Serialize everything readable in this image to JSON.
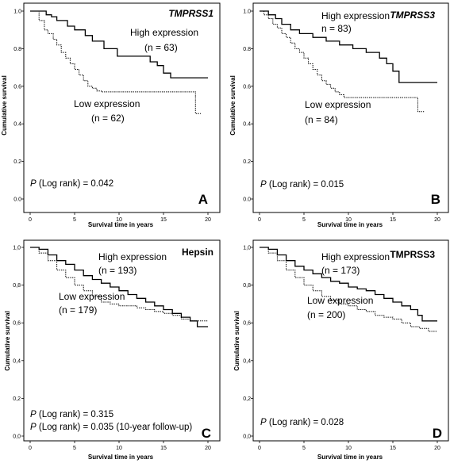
{
  "figure": {
    "panels": [
      {
        "letter": "A",
        "gene": "TMPRSS1",
        "gene_italic": true,
        "ylabel": "Cumulative survival",
        "xlabel": "Survival time in years",
        "yticks": [
          "0.0",
          "0.2",
          "0.4",
          "0.6",
          "0.8",
          "1.0"
        ],
        "xticks": [
          "0",
          "5",
          "10",
          "15",
          "20"
        ],
        "high_label": "High expression",
        "high_n": "(n = 63)",
        "low_label": "Low expression",
        "low_n": "(n = 62)",
        "pvalue_lines": [
          {
            "p": "P",
            "rest": " (Log rank) = 0.042"
          }
        ]
      },
      {
        "letter": "B",
        "gene": "TMPRSS3",
        "gene_italic": true,
        "ylabel": "Cumulative survival",
        "xlabel": "Survival time in years",
        "yticks": [
          "0.0",
          "0.2",
          "0.4",
          "0.6",
          "0.8",
          "1.0"
        ],
        "xticks": [
          "0",
          "5",
          "10",
          "15",
          "20"
        ],
        "high_label": "High expression",
        "high_n": "n = 83)",
        "low_label": "Low expression",
        "low_n": "(n = 84)",
        "pvalue_lines": [
          {
            "p": "P",
            "rest": " (Log rank) = 0.015"
          }
        ]
      },
      {
        "letter": "C",
        "gene": "Hepsin",
        "gene_italic": false,
        "ylabel": "Cumulative survival",
        "xlabel": "Survival time in years",
        "yticks": [
          "0,0",
          "0,2",
          "0,4",
          "0,6",
          "0,8",
          "1,0"
        ],
        "xticks": [
          "0",
          "5",
          "10",
          "15",
          "20"
        ],
        "high_label": "High expression",
        "high_n": "(n = 193)",
        "low_label": "Low expression",
        "low_n": "(n = 179)",
        "pvalue_lines": [
          {
            "p": "P",
            "rest": " (Log rank) = 0.315"
          },
          {
            "p": "P",
            "rest": " (Log rank) = 0.035 (10-year follow-up)"
          }
        ]
      },
      {
        "letter": "D",
        "gene": "TMPRSS3",
        "gene_italic": false,
        "ylabel": "Cumulative survival",
        "xlabel": "Survival time in years",
        "yticks": [
          "0,0",
          "0,2",
          "0,4",
          "0,6",
          "0,8",
          "1,0"
        ],
        "xticks": [
          "0",
          "5",
          "10",
          "15",
          "20"
        ],
        "high_label": "High expression",
        "high_n": "(n = 173)",
        "low_label": "Low expression",
        "low_n": "(n = 200)",
        "pvalue_lines": [
          {
            "p": "P",
            "rest": " (Log rank) = 0.028"
          }
        ]
      }
    ]
  },
  "chart_data": [
    {
      "type": "line",
      "step": true,
      "xlim": [
        0,
        20
      ],
      "ylim": [
        0,
        1
      ],
      "series": [
        {
          "name": "High expression (n = 63)",
          "style": "solid",
          "x": [
            0,
            1.8,
            2.4,
            3.0,
            4.2,
            5.0,
            6.2,
            7.0,
            8.3,
            9.8,
            13.5,
            14.3,
            15.0,
            15.8,
            20
          ],
          "y": [
            1.0,
            0.98,
            0.97,
            0.95,
            0.92,
            0.9,
            0.87,
            0.84,
            0.8,
            0.76,
            0.73,
            0.71,
            0.67,
            0.645,
            0.645
          ]
        },
        {
          "name": "Low expression (n = 62)",
          "style": "dotted",
          "x": [
            0,
            1.0,
            1.6,
            2.0,
            2.6,
            3.0,
            3.5,
            4.0,
            4.5,
            5.0,
            5.5,
            6.0,
            6.5,
            7.0,
            7.5,
            8.0,
            9.0,
            11.0,
            18.3,
            18.6,
            19.2
          ],
          "y": [
            1.0,
            0.95,
            0.9,
            0.88,
            0.85,
            0.82,
            0.78,
            0.75,
            0.72,
            0.69,
            0.66,
            0.63,
            0.6,
            0.59,
            0.575,
            0.57,
            0.57,
            0.57,
            0.57,
            0.455,
            0.455
          ]
        }
      ]
    },
    {
      "type": "line",
      "step": true,
      "xlim": [
        0,
        20
      ],
      "ylim": [
        0,
        1
      ],
      "series": [
        {
          "name": "High expression (n = 83)",
          "style": "solid",
          "x": [
            0,
            1.0,
            1.8,
            2.5,
            3.5,
            4.5,
            6.0,
            7.5,
            9.0,
            10.5,
            12.0,
            13.5,
            14.3,
            15.0,
            15.7,
            20
          ],
          "y": [
            1.0,
            0.98,
            0.96,
            0.93,
            0.9,
            0.88,
            0.86,
            0.84,
            0.82,
            0.8,
            0.78,
            0.75,
            0.72,
            0.68,
            0.62,
            0.62
          ]
        },
        {
          "name": "Low expression (n = 84)",
          "style": "dotted",
          "x": [
            0,
            0.5,
            1.0,
            1.5,
            2.0,
            2.5,
            3.0,
            3.5,
            4.0,
            4.5,
            5.0,
            5.5,
            6.0,
            6.5,
            7.0,
            7.5,
            8.0,
            8.5,
            9.0,
            9.5,
            10.0,
            17.3,
            17.8,
            18.5
          ],
          "y": [
            1.0,
            0.98,
            0.96,
            0.93,
            0.91,
            0.88,
            0.86,
            0.83,
            0.8,
            0.78,
            0.75,
            0.72,
            0.69,
            0.66,
            0.63,
            0.61,
            0.59,
            0.57,
            0.555,
            0.54,
            0.54,
            0.54,
            0.465,
            0.465
          ]
        }
      ]
    },
    {
      "type": "line",
      "step": true,
      "xlim": [
        0,
        20
      ],
      "ylim": [
        0,
        1
      ],
      "series": [
        {
          "name": "High expression (n = 193)",
          "style": "solid",
          "x": [
            0,
            1.0,
            2.0,
            3.0,
            4.0,
            5.0,
            6.0,
            7.0,
            8.0,
            9.0,
            10.0,
            11.0,
            12.0,
            13.0,
            14.0,
            15.0,
            16.0,
            17.0,
            18.0,
            18.8,
            20.0
          ],
          "y": [
            1.0,
            0.99,
            0.96,
            0.93,
            0.91,
            0.88,
            0.85,
            0.83,
            0.81,
            0.79,
            0.77,
            0.75,
            0.73,
            0.71,
            0.69,
            0.67,
            0.65,
            0.63,
            0.61,
            0.58,
            0.58
          ]
        },
        {
          "name": "Low expression (n = 179)",
          "style": "dotted",
          "x": [
            0,
            1.0,
            2.0,
            3.0,
            4.0,
            5.0,
            6.0,
            7.0,
            8.0,
            9.0,
            10.0,
            12.0,
            13.0,
            14.0,
            15.0,
            16.0,
            17.0,
            18.0,
            20.0
          ],
          "y": [
            1.0,
            0.97,
            0.93,
            0.88,
            0.84,
            0.8,
            0.77,
            0.74,
            0.71,
            0.7,
            0.69,
            0.68,
            0.67,
            0.66,
            0.65,
            0.64,
            0.62,
            0.61,
            0.61
          ]
        }
      ]
    },
    {
      "type": "line",
      "step": true,
      "xlim": [
        0,
        20
      ],
      "ylim": [
        0,
        1
      ],
      "series": [
        {
          "name": "High expression (n = 173)",
          "style": "solid",
          "x": [
            0,
            1.0,
            2.0,
            3.0,
            4.0,
            5.0,
            6.0,
            7.0,
            8.0,
            9.0,
            10.0,
            11.0,
            12.0,
            13.0,
            14.0,
            15.0,
            16.0,
            17.0,
            17.8,
            18.3,
            20.0
          ],
          "y": [
            1.0,
            0.99,
            0.96,
            0.93,
            0.9,
            0.88,
            0.86,
            0.84,
            0.82,
            0.81,
            0.79,
            0.78,
            0.77,
            0.75,
            0.73,
            0.71,
            0.69,
            0.67,
            0.64,
            0.61,
            0.61
          ]
        },
        {
          "name": "Low expression (n = 200)",
          "style": "dotted",
          "x": [
            0,
            1.0,
            2.0,
            3.0,
            4.0,
            5.0,
            6.0,
            7.0,
            8.0,
            9.0,
            10.0,
            11.0,
            12.0,
            13.0,
            14.0,
            15.0,
            16.0,
            17.0,
            18.0,
            19.0,
            20.0
          ],
          "y": [
            1.0,
            0.97,
            0.93,
            0.88,
            0.84,
            0.8,
            0.77,
            0.74,
            0.72,
            0.7,
            0.69,
            0.67,
            0.66,
            0.64,
            0.63,
            0.62,
            0.6,
            0.58,
            0.57,
            0.555,
            0.555
          ]
        }
      ]
    }
  ]
}
